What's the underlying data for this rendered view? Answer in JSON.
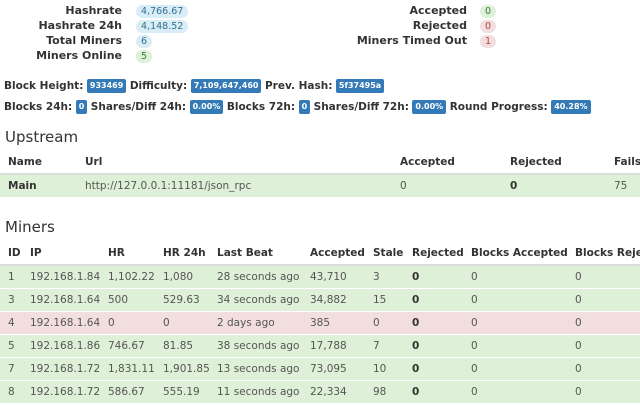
{
  "summary_left": [
    {
      "label": "Hashrate",
      "value": "4,766.67",
      "style": "blue"
    },
    {
      "label": "Hashrate 24h",
      "value": "4,148.52",
      "style": "blue"
    },
    {
      "label": "Total Miners",
      "value": "6",
      "style": "blue"
    },
    {
      "label": "Miners Online",
      "value": "5",
      "style": "green"
    }
  ],
  "summary_right": [
    {
      "label": "Accepted",
      "value": "0",
      "style": "green"
    },
    {
      "label": "Rejected",
      "value": "0",
      "style": "red"
    },
    {
      "label": "Miners Timed Out",
      "value": "1",
      "style": "red"
    }
  ],
  "stats_row1": [
    {
      "label": "Block Height:",
      "value": "933469"
    },
    {
      "label": "Difficulty:",
      "value": "7,109,647,460"
    },
    {
      "label": "Prev. Hash:",
      "value": "5f37495a"
    }
  ],
  "stats_row2": [
    {
      "label": "Blocks 24h:",
      "value": "0"
    },
    {
      "label": "Shares/Diff 24h:",
      "value": "0.00%"
    },
    {
      "label": "Blocks 72h:",
      "value": "0"
    },
    {
      "label": "Shares/Diff 72h:",
      "value": "0.00%"
    },
    {
      "label": "Round Progress:",
      "value": "40.28%"
    }
  ],
  "upstream": {
    "title": "Upstream",
    "headers": [
      "Name",
      "Url",
      "Accepted",
      "Rejected",
      "Fails"
    ],
    "rows": [
      {
        "name": "Main",
        "url": "http://127.0.0.1:11181/json_rpc",
        "accepted": "0",
        "rejected": "0",
        "fails": "75"
      }
    ]
  },
  "miners": {
    "title": "Miners",
    "headers": [
      "ID",
      "IP",
      "HR",
      "HR 24h",
      "Last Beat",
      "Accepted",
      "Stale",
      "Rejected",
      "Blocks Accepted",
      "Blocks Rejected"
    ],
    "rows": [
      {
        "status": "ok",
        "id": "1",
        "ip": "192.168.1.84",
        "hr": "1,102.22",
        "hr24": "1,080",
        "beat": "28 seconds ago",
        "accepted": "43,710",
        "stale": "3",
        "rejected": "0",
        "bacc": "0",
        "brej": "0"
      },
      {
        "status": "ok",
        "id": "3",
        "ip": "192.168.1.64",
        "hr": "500",
        "hr24": "529.63",
        "beat": "34 seconds ago",
        "accepted": "34,882",
        "stale": "15",
        "rejected": "0",
        "bacc": "0",
        "brej": "0"
      },
      {
        "status": "bad",
        "id": "4",
        "ip": "192.168.1.64",
        "hr": "0",
        "hr24": "0",
        "beat": "2 days ago",
        "accepted": "385",
        "stale": "0",
        "rejected": "0",
        "bacc": "0",
        "brej": "0"
      },
      {
        "status": "ok",
        "id": "5",
        "ip": "192.168.1.86",
        "hr": "746.67",
        "hr24": "81.85",
        "beat": "38 seconds ago",
        "accepted": "17,788",
        "stale": "7",
        "rejected": "0",
        "bacc": "0",
        "brej": "0"
      },
      {
        "status": "ok",
        "id": "7",
        "ip": "192.168.1.72",
        "hr": "1,831.11",
        "hr24": "1,901.85",
        "beat": "13 seconds ago",
        "accepted": "73,095",
        "stale": "10",
        "rejected": "0",
        "bacc": "0",
        "brej": "0"
      },
      {
        "status": "ok",
        "id": "8",
        "ip": "192.168.1.72",
        "hr": "586.67",
        "hr24": "555.19",
        "beat": "11 seconds ago",
        "accepted": "22,334",
        "stale": "98",
        "rejected": "0",
        "bacc": "0",
        "brej": "0"
      }
    ]
  },
  "colors": {
    "ok_row": "#dff0d8",
    "bad_row": "#f2dede",
    "badge_blue": "#337ab7"
  }
}
